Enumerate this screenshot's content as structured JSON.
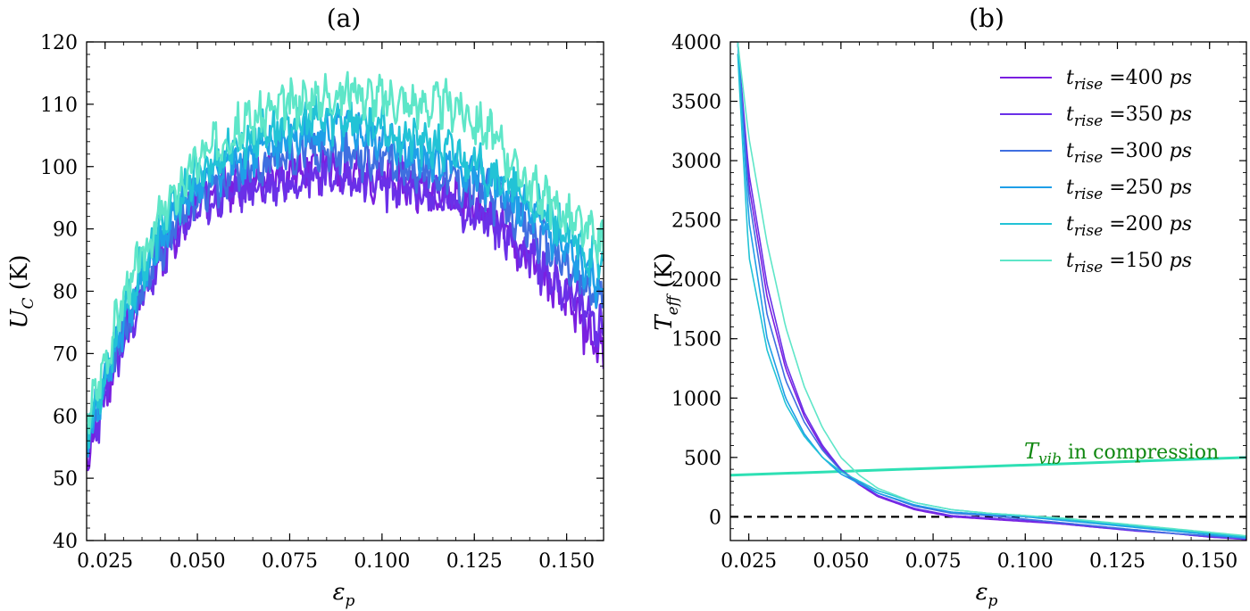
{
  "chart_data": [
    {
      "type": "line",
      "panel_label": "(a)",
      "xlabel": {
        "base": "ε",
        "sub": "p"
      },
      "ylabel": {
        "base": "U",
        "sub": "C",
        "unit": " (K)"
      },
      "xlim": [
        0.02,
        0.16
      ],
      "ylim": [
        40,
        120
      ],
      "xticks": [
        "0.025",
        "0.050",
        "0.075",
        "0.100",
        "0.125",
        "0.150"
      ],
      "yticks": [
        "40",
        "50",
        "60",
        "70",
        "80",
        "90",
        "100",
        "110",
        "120"
      ],
      "series": [
        {
          "color": "#7a1fe0",
          "amp": 0.9,
          "seed": 11,
          "x": [
            0.02,
            0.03,
            0.04,
            0.05,
            0.06,
            0.07,
            0.08,
            0.09,
            0.1,
            0.11,
            0.12,
            0.13,
            0.14,
            0.15,
            0.16
          ],
          "y": [
            53,
            73,
            86,
            95,
            97,
            98,
            100,
            99,
            98,
            97,
            95,
            92,
            85,
            78,
            70
          ]
        },
        {
          "color": "#6a30e8",
          "amp": 0.9,
          "seed": 23,
          "x": [
            0.02,
            0.03,
            0.04,
            0.05,
            0.06,
            0.07,
            0.08,
            0.09,
            0.1,
            0.11,
            0.12,
            0.13,
            0.14,
            0.15,
            0.16
          ],
          "y": [
            54,
            72,
            85,
            94,
            96,
            97,
            99,
            98,
            97,
            96,
            94,
            91,
            86,
            80,
            74
          ]
        },
        {
          "color": "#3f6fe0",
          "amp": 0.9,
          "seed": 37,
          "x": [
            0.02,
            0.03,
            0.04,
            0.05,
            0.06,
            0.07,
            0.08,
            0.09,
            0.1,
            0.11,
            0.12,
            0.13,
            0.14,
            0.15,
            0.16
          ],
          "y": [
            55,
            74,
            87,
            96,
            99,
            101,
            103,
            102,
            101,
            100,
            98,
            95,
            90,
            84,
            78
          ]
        },
        {
          "color": "#1f9fe8",
          "amp": 0.9,
          "seed": 41,
          "x": [
            0.02,
            0.03,
            0.04,
            0.05,
            0.06,
            0.07,
            0.08,
            0.09,
            0.1,
            0.11,
            0.12,
            0.13,
            0.14,
            0.15,
            0.16
          ],
          "y": [
            56,
            75,
            88,
            97,
            101,
            103,
            105,
            106,
            104,
            102,
            100,
            97,
            92,
            86,
            80
          ]
        },
        {
          "color": "#22c3d6",
          "amp": 0.9,
          "seed": 53,
          "x": [
            0.02,
            0.03,
            0.04,
            0.05,
            0.06,
            0.07,
            0.08,
            0.09,
            0.1,
            0.11,
            0.12,
            0.13,
            0.14,
            0.15,
            0.16
          ],
          "y": [
            57,
            77,
            90,
            99,
            103,
            106,
            107,
            108,
            106,
            104,
            102,
            99,
            94,
            89,
            84
          ]
        },
        {
          "color": "#5ee6c8",
          "amp": 0.9,
          "seed": 67,
          "x": [
            0.02,
            0.03,
            0.04,
            0.05,
            0.06,
            0.07,
            0.08,
            0.09,
            0.1,
            0.11,
            0.12,
            0.13,
            0.14,
            0.15,
            0.16
          ],
          "y": [
            59,
            79,
            92,
            101,
            106,
            109,
            111,
            112,
            111,
            110,
            110,
            105,
            97,
            92,
            87
          ]
        }
      ]
    },
    {
      "type": "line",
      "panel_label": "(b)",
      "xlabel": {
        "base": "ε",
        "sub": "p"
      },
      "ylabel": {
        "base": "T",
        "sub": "eff",
        "unit": " (K)"
      },
      "xlim": [
        0.02,
        0.16
      ],
      "ylim": [
        -200,
        4000
      ],
      "xticks": [
        "0.025",
        "0.050",
        "0.075",
        "0.100",
        "0.125",
        "0.150"
      ],
      "yticks": [
        "0",
        "500",
        "1000",
        "1500",
        "2000",
        "2500",
        "3000",
        "3500",
        "4000"
      ],
      "legend_position": "top-right",
      "series": [
        {
          "name": {
            "base": "t",
            "sub": "rise",
            "rest": " =400 ",
            "unit": "ps"
          },
          "color": "#7a1fe0",
          "amp": 0.0,
          "seed": 3,
          "x": [
            0.022,
            0.025,
            0.03,
            0.035,
            0.04,
            0.045,
            0.05,
            0.055,
            0.06,
            0.07,
            0.08,
            0.09,
            0.1,
            0.11,
            0.12,
            0.13,
            0.14,
            0.15,
            0.16
          ],
          "y": [
            4000,
            2800,
            1850,
            1250,
            850,
            580,
            390,
            270,
            170,
            60,
            0,
            -20,
            -40,
            -60,
            -90,
            -110,
            -140,
            -170,
            -190
          ]
        },
        {
          "name": {
            "base": "t",
            "sub": "rise",
            "rest": " =350 ",
            "unit": "ps"
          },
          "color": "#6a30e8",
          "amp": 0.0,
          "seed": 5,
          "x": [
            0.022,
            0.025,
            0.03,
            0.035,
            0.04,
            0.045,
            0.05,
            0.055,
            0.06,
            0.07,
            0.08,
            0.09,
            0.1,
            0.11,
            0.12,
            0.13,
            0.14,
            0.15,
            0.16
          ],
          "y": [
            4000,
            2900,
            1950,
            1300,
            880,
            600,
            400,
            280,
            180,
            70,
            10,
            -10,
            -30,
            -60,
            -90,
            -120,
            -140,
            -170,
            -190
          ]
        },
        {
          "name": {
            "base": "t",
            "sub": "rise",
            "rest": " =300 ",
            "unit": "ps"
          },
          "color": "#3f6fe0",
          "amp": 0.0,
          "seed": 7,
          "x": [
            0.022,
            0.025,
            0.03,
            0.035,
            0.04,
            0.045,
            0.05,
            0.055,
            0.06,
            0.07,
            0.08,
            0.09,
            0.1,
            0.11,
            0.12,
            0.13,
            0.14,
            0.15,
            0.16
          ],
          "y": [
            4000,
            2700,
            1700,
            1150,
            800,
            560,
            390,
            290,
            200,
            90,
            30,
            10,
            -20,
            -50,
            -80,
            -110,
            -140,
            -160,
            -180
          ]
        },
        {
          "name": {
            "base": "t",
            "sub": "rise",
            "rest": " =250 ",
            "unit": "ps"
          },
          "color": "#1f9fe8",
          "amp": 0.0,
          "seed": 9,
          "x": [
            0.022,
            0.025,
            0.03,
            0.035,
            0.04,
            0.045,
            0.05,
            0.055,
            0.06,
            0.07,
            0.08,
            0.09,
            0.1,
            0.11,
            0.12,
            0.13,
            0.14,
            0.15,
            0.16
          ],
          "y": [
            4000,
            2500,
            1500,
            1000,
            700,
            500,
            360,
            280,
            200,
            100,
            40,
            20,
            0,
            -30,
            -60,
            -90,
            -120,
            -150,
            -180
          ]
        },
        {
          "name": {
            "base": "t",
            "sub": "rise",
            "rest": " =200 ",
            "unit": "ps"
          },
          "color": "#22c3d6",
          "amp": 0.0,
          "seed": 13,
          "x": [
            0.022,
            0.025,
            0.03,
            0.035,
            0.04,
            0.045,
            0.05,
            0.055,
            0.06,
            0.07,
            0.08,
            0.09,
            0.1,
            0.11,
            0.12,
            0.13,
            0.14,
            0.15,
            0.16
          ],
          "y": [
            3900,
            2200,
            1400,
            950,
            680,
            500,
            380,
            300,
            220,
            120,
            60,
            30,
            10,
            -20,
            -50,
            -80,
            -110,
            -140,
            -170
          ]
        },
        {
          "name": {
            "base": "t",
            "sub": "rise",
            "rest": " =150 ",
            "unit": "ps"
          },
          "color": "#5ee6c8",
          "amp": 0.0,
          "seed": 17,
          "x": [
            0.022,
            0.025,
            0.03,
            0.035,
            0.04,
            0.045,
            0.05,
            0.055,
            0.06,
            0.07,
            0.08,
            0.09,
            0.1,
            0.11,
            0.12,
            0.13,
            0.14,
            0.15,
            0.16
          ],
          "y": [
            4000,
            3200,
            2300,
            1600,
            1100,
            750,
            500,
            350,
            240,
            120,
            60,
            30,
            10,
            -10,
            -40,
            -70,
            -100,
            -130,
            -160
          ]
        }
      ],
      "reference_lines": [
        {
          "color": "#2ee0b4",
          "x": [
            0.02,
            0.16
          ],
          "y": [
            350,
            500
          ]
        },
        {
          "color": "#000000",
          "style": "dashed",
          "x": [
            0.02,
            0.16
          ],
          "y": [
            0,
            0
          ]
        }
      ],
      "annotation": {
        "base": "T",
        "sub": "vib",
        "rest": " in compression",
        "color": "#118811",
        "x": 0.155,
        "y": 500
      }
    }
  ]
}
